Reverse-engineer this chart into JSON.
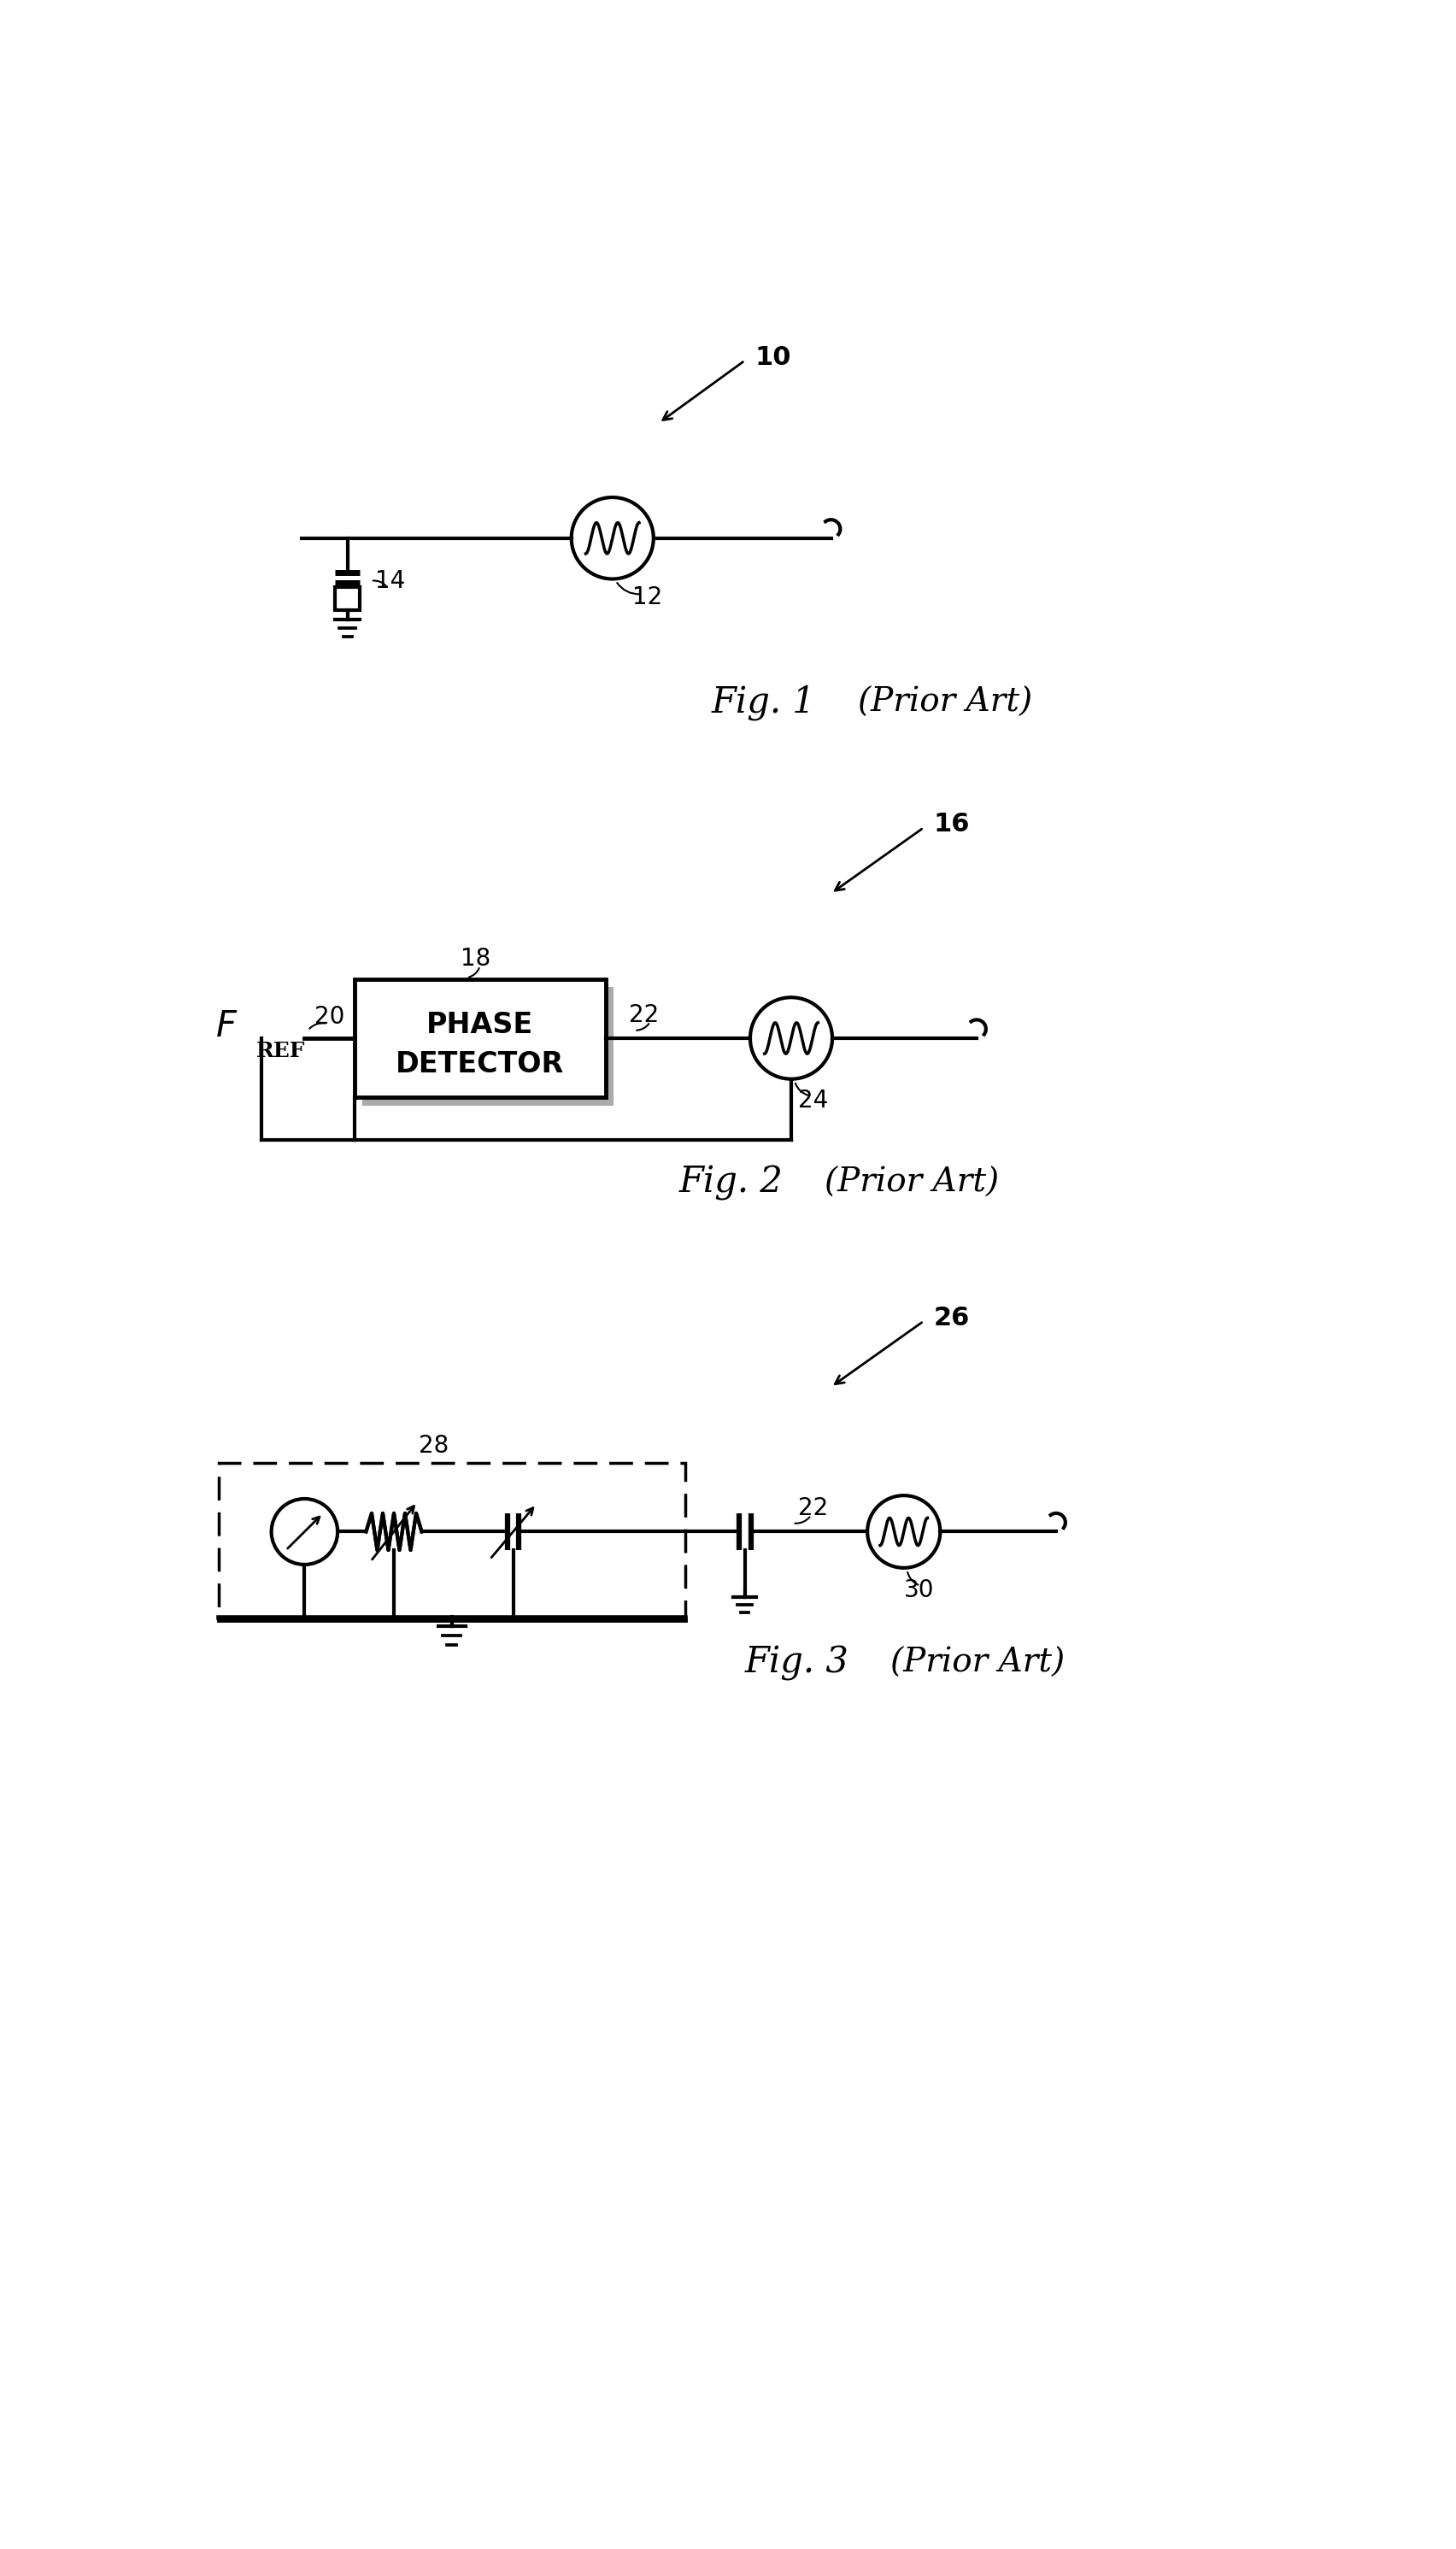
{
  "bg_color": "#ffffff",
  "line_color": "#000000",
  "lw": 3.0,
  "fig_width": 17.04,
  "fig_height": 29.83,
  "label_10": "10",
  "label_12": "12",
  "label_14": "14",
  "label_16": "16",
  "label_18": "18",
  "label_20": "20",
  "label_22": "22",
  "label_24": "24",
  "label_26": "26",
  "label_28": "28",
  "label_30": "30",
  "fig1_caption": "Fig. 1",
  "fig1_prior": "(Prior Art)",
  "fig2_caption": "Fig. 2",
  "fig2_prior": "(Prior Art)",
  "fig3_caption": "Fig. 3",
  "fig3_prior": "(Prior Art)"
}
